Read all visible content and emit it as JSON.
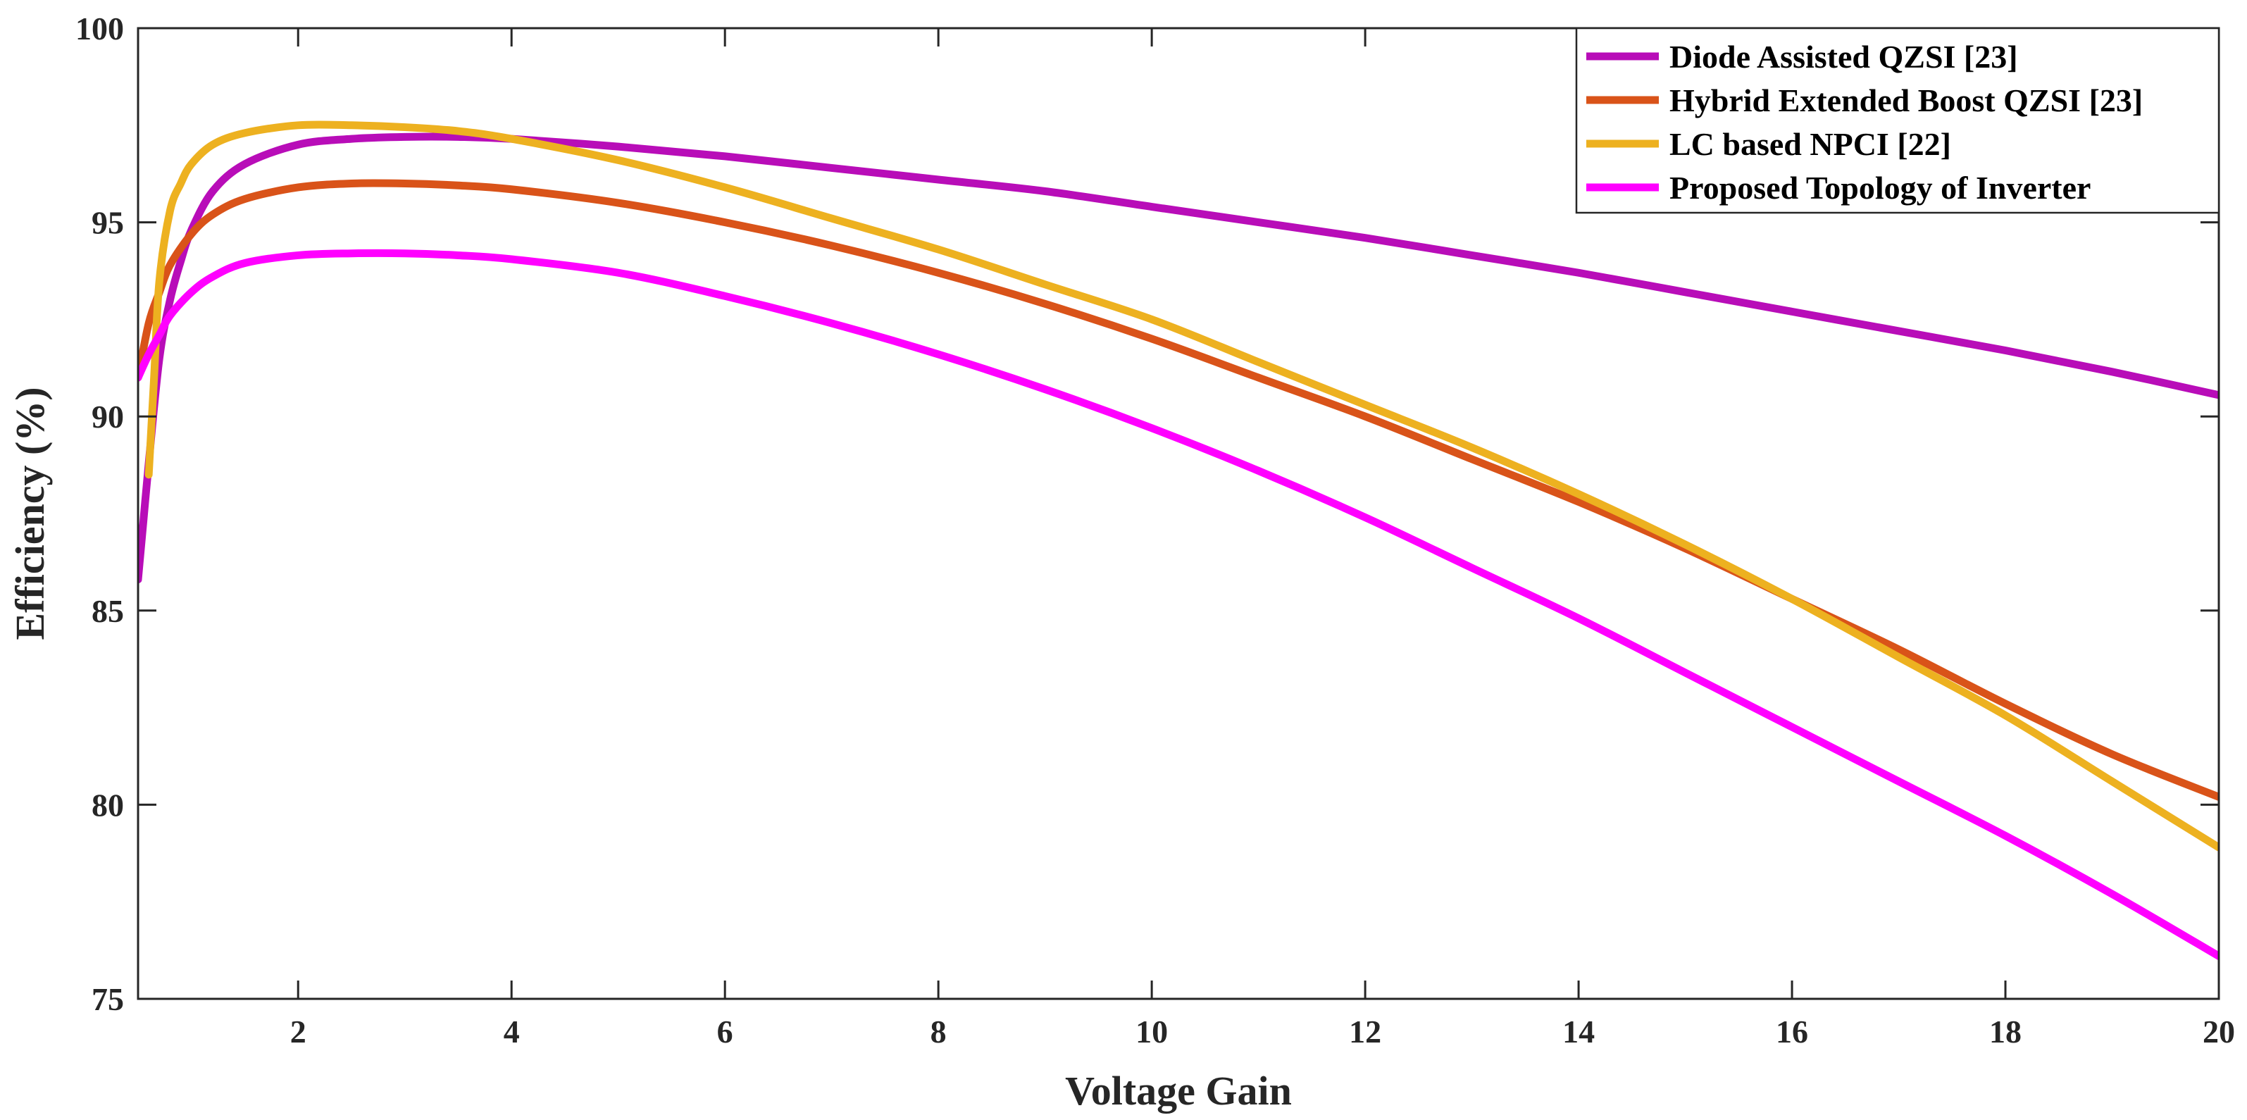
{
  "chart_data": {
    "type": "line",
    "title": "",
    "xlabel": "Voltage Gain",
    "ylabel": "Efficiency (%)",
    "xlim": [
      0.5,
      20
    ],
    "ylim": [
      75,
      100
    ],
    "xticks": [
      2,
      4,
      6,
      8,
      10,
      12,
      14,
      16,
      18,
      20
    ],
    "yticks": [
      75,
      80,
      85,
      90,
      95,
      100
    ],
    "xtick_labels": [
      "2",
      "4",
      "6",
      "8",
      "10",
      "12",
      "14",
      "16",
      "18",
      "20"
    ],
    "ytick_labels": [
      "75",
      "80",
      "85",
      "90",
      "95",
      "100"
    ],
    "legend_location": "top-right",
    "grid": false,
    "series": [
      {
        "name": "Diode Assisted QZSI [23]",
        "color": "#B80DB8",
        "x": [
          0.5,
          0.55,
          0.6,
          0.7,
          0.8,
          0.9,
          1.0,
          1.2,
          1.5,
          2,
          2.5,
          3,
          3.5,
          4,
          5,
          6,
          7,
          8,
          9,
          10,
          11,
          12,
          13,
          14,
          15,
          16,
          17,
          18,
          19,
          20
        ],
        "values": [
          85.8,
          87.3,
          88.8,
          91.5,
          93.0,
          94.0,
          94.8,
          95.8,
          96.5,
          97.0,
          97.15,
          97.2,
          97.2,
          97.15,
          96.95,
          96.7,
          96.4,
          96.1,
          95.8,
          95.4,
          95.0,
          94.6,
          94.15,
          93.7,
          93.2,
          92.7,
          92.2,
          91.7,
          91.15,
          90.55
        ]
      },
      {
        "name": "Hybrid Extended Boost QZSI [23]",
        "color": "#D95319",
        "x": [
          0.5,
          0.6,
          0.7,
          0.8,
          1.0,
          1.2,
          1.5,
          2,
          2.5,
          3,
          3.5,
          4,
          5,
          6,
          7,
          8,
          9,
          10,
          11,
          12,
          13,
          14,
          15,
          16,
          17,
          18,
          19,
          20
        ],
        "values": [
          91.0,
          92.4,
          93.2,
          93.9,
          94.7,
          95.2,
          95.6,
          95.9,
          96.0,
          96.0,
          95.95,
          95.85,
          95.5,
          95.0,
          94.4,
          93.7,
          92.9,
          92.0,
          91.0,
          90.0,
          88.9,
          87.8,
          86.6,
          85.3,
          84.0,
          82.6,
          81.3,
          80.2
        ]
      },
      {
        "name": "LC based NPCI [22]",
        "color": "#EDB120",
        "x": [
          0.6,
          0.65,
          0.7,
          0.8,
          0.9,
          1.0,
          1.2,
          1.5,
          2,
          2.5,
          3,
          3.5,
          4,
          5,
          6,
          7,
          8,
          9,
          10,
          11,
          12,
          13,
          14,
          15,
          16,
          17,
          18,
          19,
          20
        ],
        "values": [
          88.5,
          91.0,
          93.5,
          95.3,
          96.0,
          96.5,
          97.0,
          97.3,
          97.5,
          97.5,
          97.45,
          97.35,
          97.15,
          96.6,
          95.9,
          95.1,
          94.3,
          93.4,
          92.5,
          91.4,
          90.3,
          89.2,
          88.0,
          86.7,
          85.3,
          83.8,
          82.3,
          80.6,
          78.9
        ]
      },
      {
        "name": "Proposed Topology of Inverter",
        "color": "#FF00FF",
        "x": [
          0.5,
          0.6,
          0.7,
          0.8,
          1.0,
          1.2,
          1.5,
          2,
          2.5,
          3,
          3.5,
          4,
          5,
          6,
          7,
          8,
          9,
          10,
          11,
          12,
          13,
          14,
          15,
          16,
          17,
          18,
          19,
          20
        ],
        "values": [
          91.0,
          91.6,
          92.1,
          92.6,
          93.2,
          93.6,
          93.95,
          94.15,
          94.2,
          94.2,
          94.15,
          94.05,
          93.7,
          93.1,
          92.4,
          91.6,
          90.7,
          89.7,
          88.6,
          87.4,
          86.1,
          84.8,
          83.4,
          82.0,
          80.6,
          79.2,
          77.7,
          76.1
        ]
      }
    ]
  }
}
